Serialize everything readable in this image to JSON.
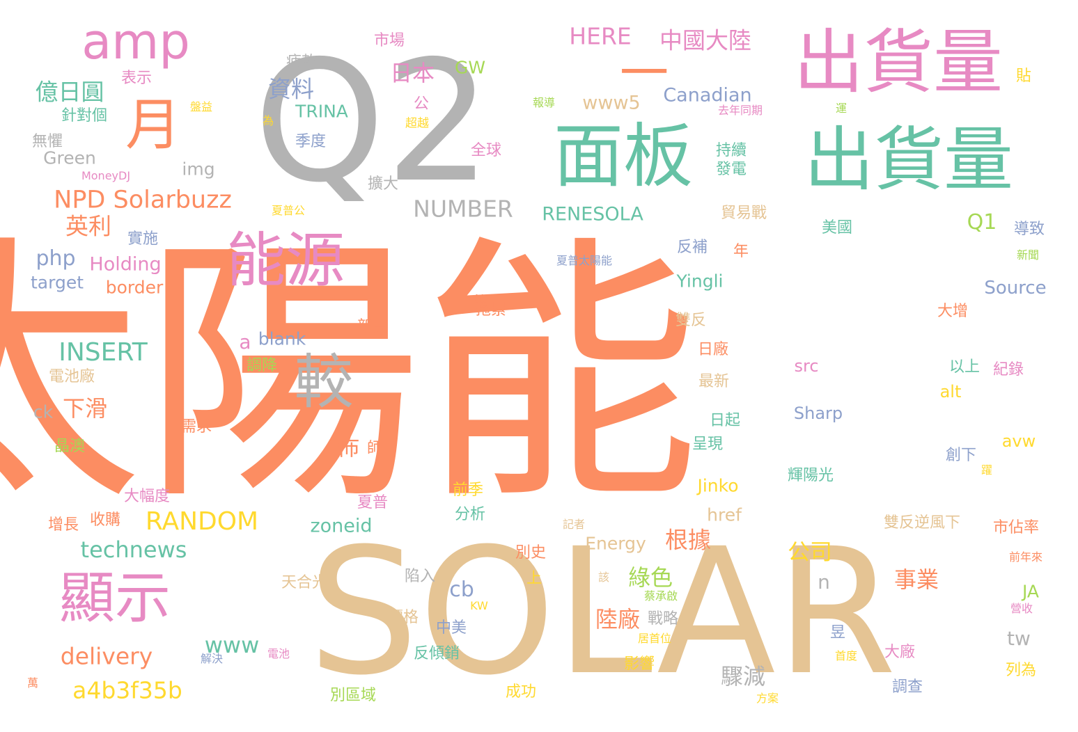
{
  "palette": {
    "orange": "#fc8d62",
    "green": "#66c2a5",
    "blue": "#8da0cb",
    "pink": "#e78ac3",
    "lime": "#a6d854",
    "yellow": "#ffd92f",
    "tan": "#e5c494",
    "gray": "#b3b3b3"
  },
  "words": [
    {
      "text": "太陽能",
      "color": "orange"
    },
    {
      "text": "SOLAR",
      "color": "tan"
    },
    {
      "text": "Q2",
      "color": "gray"
    },
    {
      "text": "出貨量",
      "color": "pink"
    },
    {
      "text": "出貨量",
      "color": "green"
    },
    {
      "text": "面板",
      "color": "green"
    },
    {
      "text": "能源",
      "color": "pink"
    },
    {
      "text": "amp",
      "color": "pink"
    },
    {
      "text": "月",
      "color": "orange"
    },
    {
      "text": "顯示",
      "color": "pink"
    },
    {
      "text": "較",
      "color": "gray"
    },
    {
      "text": "一",
      "color": "orange"
    },
    {
      "text": "NPD Solarbuzz",
      "color": "orange"
    },
    {
      "text": "INSERT",
      "color": "green"
    },
    {
      "text": "RANDOM",
      "color": "yellow"
    },
    {
      "text": "NUMBER",
      "color": "gray"
    },
    {
      "text": "technews",
      "color": "green"
    },
    {
      "text": "delivery",
      "color": "orange"
    },
    {
      "text": "a4b3f35b",
      "color": "yellow"
    },
    {
      "text": "HERE",
      "color": "pink"
    },
    {
      "text": "中國大陸",
      "color": "pink"
    },
    {
      "text": "日本",
      "color": "pink"
    },
    {
      "text": "資料",
      "color": "blue"
    },
    {
      "text": "億日圓",
      "color": "green"
    },
    {
      "text": "英利",
      "color": "orange"
    },
    {
      "text": "Canadian",
      "color": "blue"
    },
    {
      "text": "www5",
      "color": "tan"
    },
    {
      "text": "RENESOLA",
      "color": "green"
    },
    {
      "text": "TRINA",
      "color": "green"
    },
    {
      "text": "GW",
      "color": "lime"
    },
    {
      "text": "Q1",
      "color": "lime"
    },
    {
      "text": "php",
      "color": "blue"
    },
    {
      "text": "Holding",
      "color": "pink"
    },
    {
      "text": "target",
      "color": "blue"
    },
    {
      "text": "border",
      "color": "orange"
    },
    {
      "text": "Source",
      "color": "blue"
    },
    {
      "text": "Yingli",
      "color": "green"
    },
    {
      "text": "blank",
      "color": "blue"
    },
    {
      "text": "下滑",
      "color": "orange"
    },
    {
      "text": "佈",
      "color": "orange"
    },
    {
      "text": "根據",
      "color": "orange"
    },
    {
      "text": "公司",
      "color": "yellow"
    },
    {
      "text": "事業",
      "color": "orange"
    },
    {
      "text": "綠色",
      "color": "lime"
    },
    {
      "text": "陸廠",
      "color": "orange"
    },
    {
      "text": "cb",
      "color": "blue"
    },
    {
      "text": "www",
      "color": "green"
    },
    {
      "text": "zoneid",
      "color": "green"
    },
    {
      "text": "驟減",
      "color": "gray"
    },
    {
      "text": "Green",
      "color": "gray"
    },
    {
      "text": "img",
      "color": "gray"
    },
    {
      "text": "MoneyDJ",
      "color": "pink"
    },
    {
      "text": "Energy",
      "color": "tan"
    },
    {
      "text": "Jinko",
      "color": "yellow"
    },
    {
      "text": "href",
      "color": "tan"
    },
    {
      "text": "Sharp",
      "color": "blue"
    },
    {
      "text": "src",
      "color": "pink"
    },
    {
      "text": "alt",
      "color": "yellow"
    },
    {
      "text": "avw",
      "color": "yellow"
    },
    {
      "text": "tw",
      "color": "gray"
    },
    {
      "text": "JA",
      "color": "lime"
    },
    {
      "text": "n",
      "color": "gray"
    },
    {
      "text": "a",
      "color": "pink"
    },
    {
      "text": "ck",
      "color": "gray"
    },
    {
      "text": "KW",
      "color": "yellow"
    },
    {
      "text": "市場",
      "color": "pink"
    },
    {
      "text": "疲軟",
      "color": "gray"
    },
    {
      "text": "表示",
      "color": "pink"
    },
    {
      "text": "針對個",
      "color": "green"
    },
    {
      "text": "無懼",
      "color": "gray"
    },
    {
      "text": "盤益",
      "color": "yellow"
    },
    {
      "text": "公",
      "color": "pink"
    },
    {
      "text": "為",
      "color": "yellow"
    },
    {
      "text": "超越",
      "color": "yellow"
    },
    {
      "text": "季度",
      "color": "blue"
    },
    {
      "text": "全球",
      "color": "pink"
    },
    {
      "text": "擴大",
      "color": "gray"
    },
    {
      "text": "報導",
      "color": "lime"
    },
    {
      "text": "去年同期",
      "color": "pink"
    },
    {
      "text": "運",
      "color": "lime"
    },
    {
      "text": "貼",
      "color": "yellow"
    },
    {
      "text": "持續",
      "color": "green"
    },
    {
      "text": "發電",
      "color": "green"
    },
    {
      "text": "貿易戰",
      "color": "tan"
    },
    {
      "text": "美國",
      "color": "green"
    },
    {
      "text": "導致",
      "color": "blue"
    },
    {
      "text": "反補",
      "color": "blue"
    },
    {
      "text": "年",
      "color": "orange"
    },
    {
      "text": "夏普太陽能",
      "color": "blue"
    },
    {
      "text": "新聞",
      "color": "lime"
    },
    {
      "text": "實施",
      "color": "blue"
    },
    {
      "text": "夏普公",
      "color": "yellow"
    },
    {
      "text": "皆",
      "color": "orange"
    },
    {
      "text": "拖累",
      "color": "orange"
    },
    {
      "text": "新高",
      "color": "orange"
    },
    {
      "text": "雙反",
      "color": "tan"
    },
    {
      "text": "大增",
      "color": "orange"
    },
    {
      "text": "紀錄",
      "color": "pink"
    },
    {
      "text": "以上",
      "color": "green"
    },
    {
      "text": "調降",
      "color": "lime"
    },
    {
      "text": "電池廠",
      "color": "tan"
    },
    {
      "text": "日廠",
      "color": "orange"
    },
    {
      "text": "最新",
      "color": "tan"
    },
    {
      "text": "日起",
      "color": "green"
    },
    {
      "text": "呈現",
      "color": "green"
    },
    {
      "text": "需求",
      "color": "orange"
    },
    {
      "text": "晶澳",
      "color": "lime"
    },
    {
      "text": "師",
      "color": "orange"
    },
    {
      "text": "輝陽光",
      "color": "green"
    },
    {
      "text": "創下",
      "color": "blue"
    },
    {
      "text": "躍",
      "color": "yellow"
    },
    {
      "text": "前季",
      "color": "yellow"
    },
    {
      "text": "分析",
      "color": "green"
    },
    {
      "text": "大幅度",
      "color": "pink"
    },
    {
      "text": "收購",
      "color": "orange"
    },
    {
      "text": "增長",
      "color": "orange"
    },
    {
      "text": "夏普",
      "color": "pink"
    },
    {
      "text": "雙反逆風下",
      "color": "tan"
    },
    {
      "text": "市佔率",
      "color": "orange"
    },
    {
      "text": "記者",
      "color": "tan"
    },
    {
      "text": "別史",
      "color": "orange"
    },
    {
      "text": "前年來",
      "color": "orange"
    },
    {
      "text": "上",
      "color": "yellow"
    },
    {
      "text": "天合光",
      "color": "tan"
    },
    {
      "text": "陷入",
      "color": "gray"
    },
    {
      "text": "該",
      "color": "tan"
    },
    {
      "text": "蔡承啟",
      "color": "lime"
    },
    {
      "text": "營收",
      "color": "pink"
    },
    {
      "text": "價格",
      "color": "tan"
    },
    {
      "text": "中美",
      "color": "blue"
    },
    {
      "text": "戰略",
      "color": "gray"
    },
    {
      "text": "居首位",
      "color": "yellow"
    },
    {
      "text": "昱",
      "color": "blue"
    },
    {
      "text": "大廠",
      "color": "pink"
    },
    {
      "text": "列為",
      "color": "yellow"
    },
    {
      "text": "反傾銷",
      "color": "green"
    },
    {
      "text": "電池",
      "color": "pink"
    },
    {
      "text": "解決",
      "color": "blue"
    },
    {
      "text": "影響",
      "color": "yellow"
    },
    {
      "text": "首度",
      "color": "yellow"
    },
    {
      "text": "調查",
      "color": "blue"
    },
    {
      "text": "萬",
      "color": "orange"
    },
    {
      "text": "別區域",
      "color": "lime"
    },
    {
      "text": "成功",
      "color": "yellow"
    },
    {
      "text": "方案",
      "color": "yellow"
    }
  ]
}
